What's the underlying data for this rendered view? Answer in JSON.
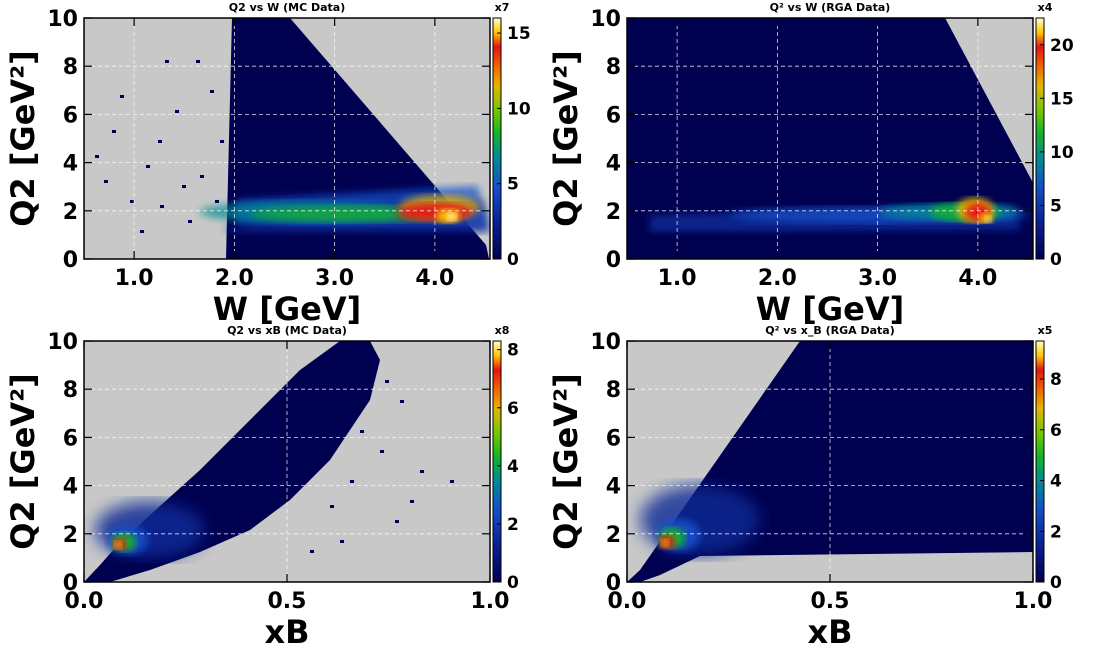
{
  "chart_data": [
    {
      "type": "heatmap",
      "title": "Q2 vs W (MC Data)",
      "xlabel": "W  [GeV]",
      "ylabel": "Q2  [GeV²]",
      "xlim": [
        0.5,
        4.55
      ],
      "ylim": [
        0,
        10
      ],
      "xticks": [
        1.0,
        2.0,
        3.0,
        4.0
      ],
      "xtick_labels": [
        "1.0",
        "2.0",
        "3.0",
        "4.0"
      ],
      "yticks": [
        0,
        2,
        4,
        6,
        8,
        10
      ],
      "ytick_labels": [
        "0",
        "2",
        "4",
        "6",
        "8",
        "10"
      ],
      "colorbar": {
        "max": 16,
        "ticks": [
          0,
          5,
          10,
          15
        ],
        "tick_labels": [
          "0",
          "5",
          "10",
          "15"
        ],
        "exponent_label": "x7"
      },
      "grid": true,
      "background": "#c8c8c8",
      "distribution": "hot spot near W=4.1 GeV, Q2=1.7 GeV²; dense band at Q2≈1.5–2.5; sparse region up to Q2=10 between W=1.9 and W=4.5; scattered entries at W<1.9"
    },
    {
      "type": "heatmap",
      "title": "Q² vs W  (RGA Data)",
      "xlabel": "W  [GeV]",
      "ylabel": "Q2  [GeV²]",
      "xlim": [
        0.5,
        4.55
      ],
      "ylim": [
        0,
        10
      ],
      "xticks": [
        1.0,
        2.0,
        3.0,
        4.0
      ],
      "xtick_labels": [
        "1.0",
        "2.0",
        "3.0",
        "4.0"
      ],
      "yticks": [
        0,
        2,
        4,
        6,
        8,
        10
      ],
      "ytick_labels": [
        "0",
        "2",
        "4",
        "6",
        "8",
        "10"
      ],
      "colorbar": {
        "max": 22.5,
        "ticks": [
          0,
          5,
          10,
          15,
          20
        ],
        "tick_labels": [
          "0",
          "5",
          "10",
          "15",
          "20"
        ],
        "exponent_label": "x4"
      },
      "grid": true,
      "background": "#c8c8c8",
      "distribution": "hot spot near W=4.0 GeV, Q2=1.8 GeV²; band at Q2≈1.3–2.5 across all W; region fills to Q2=10 at low W, bounded on right by diagonal edge"
    },
    {
      "type": "heatmap",
      "title": "Q2 vs xB (MC Data)",
      "xlabel": "xB",
      "ylabel": "Q2  [GeV²]",
      "xlim": [
        0.0,
        1.0
      ],
      "ylim": [
        0,
        10
      ],
      "xticks": [
        0.0,
        0.5,
        1.0
      ],
      "xtick_labels": [
        "0.0",
        "0.5",
        "1.0"
      ],
      "yticks": [
        0,
        2,
        4,
        6,
        8,
        10
      ],
      "ytick_labels": [
        "0",
        "2",
        "4",
        "6",
        "8",
        "10"
      ],
      "colorbar": {
        "max": 8.3,
        "ticks": [
          0,
          2,
          4,
          6,
          8
        ],
        "tick_labels": [
          "0",
          "2",
          "4",
          "6",
          "8"
        ],
        "exponent_label": "x8"
      },
      "grid": true,
      "background": "#c8c8c8",
      "distribution": "hot spot near xB=0.1, Q2=1.6 GeV²; diagonal band rising to Q2=10 at xB≈0.7; scattered entries beyond"
    },
    {
      "type": "heatmap",
      "title": "Q² vs x_B (RGA Data)",
      "xlabel": "xB",
      "ylabel": "Q2  [GeV²]",
      "xlim": [
        0.0,
        1.0
      ],
      "ylim": [
        0,
        10
      ],
      "xticks": [
        0.0,
        0.5,
        1.0
      ],
      "xtick_labels": [
        "0.0",
        "0.5",
        "1.0"
      ],
      "yticks": [
        0,
        2,
        4,
        6,
        8,
        10
      ],
      "ytick_labels": [
        "0",
        "2",
        "4",
        "6",
        "8",
        "10"
      ],
      "colorbar": {
        "max": 9.5,
        "ticks": [
          0,
          2,
          4,
          6,
          8
        ],
        "tick_labels": [
          "0",
          "2",
          "4",
          "6",
          "8"
        ],
        "exponent_label": "x5"
      },
      "grid": true,
      "background": "#c8c8c8",
      "distribution": "hot spot near xB=0.1, Q2=1.7 GeV²; filled region above Q2≈1.2 bounded by diagonal edge from origin to xB≈0.5 at Q2=10, extending to xB=1.0"
    }
  ]
}
